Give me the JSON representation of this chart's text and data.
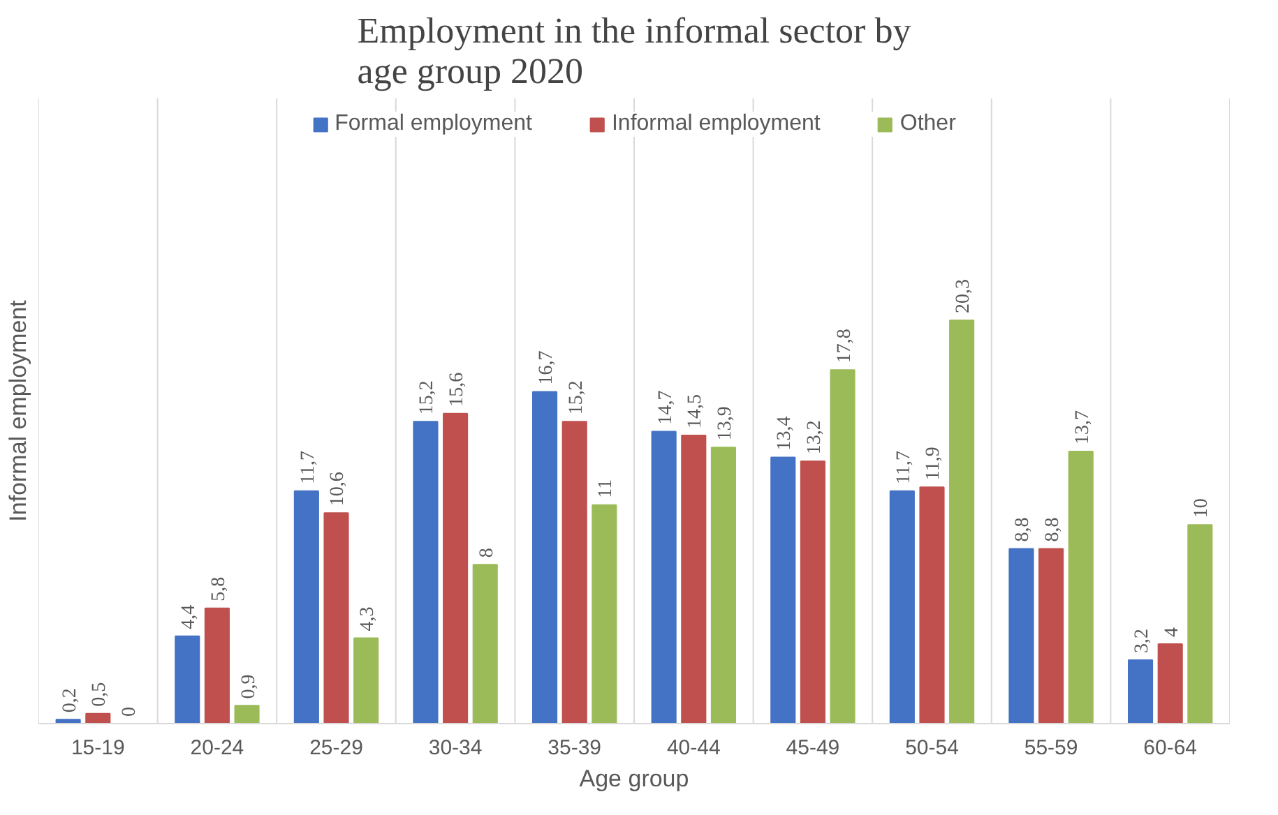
{
  "chart_data": {
    "type": "bar",
    "title": "Employment in the informal sector by age group 2020",
    "xlabel": "Age group",
    "ylabel": "Informal employment",
    "categories": [
      "15-19",
      "20-24",
      "25-29",
      "30-34",
      "35-39",
      "40-44",
      "45-49",
      "50-54",
      "55-59",
      "60-64"
    ],
    "series": [
      {
        "name": "Formal employment",
        "color": "#4472c4",
        "values": [
          0.2,
          4.4,
          11.7,
          15.2,
          16.7,
          14.7,
          13.4,
          11.7,
          8.8,
          3.2
        ],
        "value_labels": [
          "0,2",
          "4,4",
          "11,7",
          "15,2",
          "16,7",
          "14,7",
          "13,4",
          "11,7",
          "8,8",
          "3,2"
        ]
      },
      {
        "name": "Informal employment",
        "color": "#c0504d",
        "values": [
          0.5,
          5.8,
          10.6,
          15.6,
          15.2,
          14.5,
          13.2,
          11.9,
          8.8,
          4
        ],
        "value_labels": [
          "0,5",
          "5,8",
          "10,6",
          "15,6",
          "15,2",
          "14,5",
          "13,2",
          "11,9",
          "8,8",
          "4"
        ]
      },
      {
        "name": "Other",
        "color": "#9bbb59",
        "values": [
          0,
          0.9,
          4.3,
          8,
          11,
          13.9,
          17.8,
          20.3,
          13.7,
          10
        ],
        "value_labels": [
          "0",
          "0,9",
          "4,3",
          "8",
          "11",
          "13,9",
          "17,8",
          "20,3",
          "13,7",
          "10"
        ]
      }
    ],
    "legend": "top",
    "grid": "x"
  }
}
